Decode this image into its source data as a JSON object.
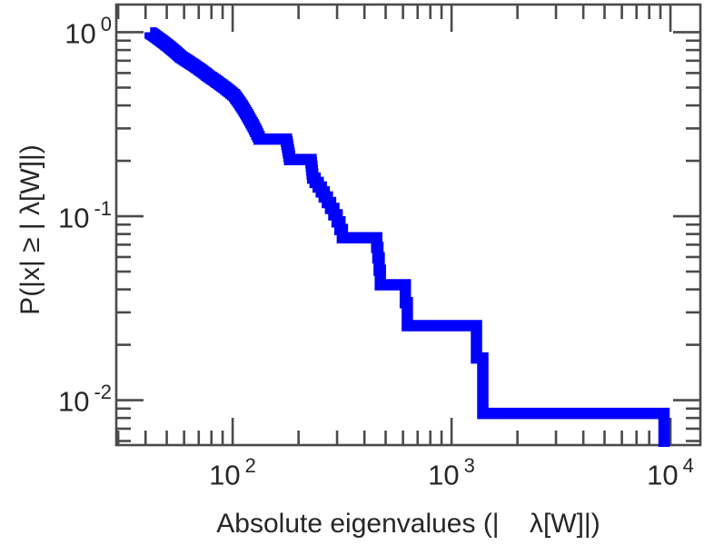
{
  "figure": {
    "background": "#ffffff",
    "frame_color": "#4a4a4a",
    "text_color": "#262626"
  },
  "chart_data": {
    "type": "line",
    "subtype": "empirical_ccdf_step",
    "title": "",
    "xlabel": "Absolute eigenvalues (|    λ[W]|)",
    "ylabel": "P(|x| ≥ | λ[W]|)",
    "x_scale": "log",
    "y_scale": "log",
    "xlim": [
      29.4,
      13700
    ],
    "ylim": [
      0.0057,
      1.414
    ],
    "grid": false,
    "legend": null,
    "x_ticks": {
      "major_values": [
        100,
        1000,
        10000
      ],
      "labels": [
        {
          "base": "10",
          "exp": "2"
        },
        {
          "base": "10",
          "exp": "3"
        },
        {
          "base": "10",
          "exp": "4"
        }
      ]
    },
    "y_ticks": {
      "major_values": [
        1,
        0.1,
        0.01
      ],
      "labels": [
        {
          "base": "10",
          "exp": "0"
        },
        {
          "base": "10",
          "exp": "-1"
        },
        {
          "base": "10",
          "exp": "-2"
        }
      ]
    },
    "series": [
      {
        "name": "absolute-eigenvalue-ccdf",
        "color": "#0000ff",
        "line_width": 12.5,
        "n_samples": 118,
        "p_start": 1.0,
        "p_min_plateau": 0.00847,
        "eigenvalues_sorted": [
          42.0,
          42.4,
          42.9,
          43.3,
          43.8,
          44.2,
          44.7,
          45.2,
          45.6,
          46.1,
          46.6,
          47.1,
          47.6,
          48.1,
          48.6,
          49.1,
          49.6,
          50.2,
          50.7,
          51.2,
          51.8,
          52.3,
          52.9,
          53.4,
          54.0,
          54.6,
          55.1,
          55.7,
          56.3,
          56.9,
          57.5,
          58.1,
          59.0,
          60.0,
          60.9,
          61.9,
          62.9,
          63.9,
          64.9,
          66.0,
          67.0,
          68.1,
          69.2,
          70.3,
          71.4,
          72.6,
          73.7,
          74.9,
          76.1,
          77.3,
          78.6,
          80.1,
          81.6,
          83.1,
          84.6,
          86.2,
          87.8,
          89.5,
          91.2,
          92.9,
          94.6,
          96.4,
          98.2,
          100.0,
          101.9,
          103.1,
          104.3,
          105.5,
          106.7,
          108.0,
          109.2,
          110.5,
          111.8,
          113.1,
          114.4,
          115.7,
          117.1,
          118.4,
          119.8,
          121.3,
          122.8,
          124.3,
          125.8,
          127.3,
          128.9,
          130.4,
          132.0,
          176.0,
          177.0,
          178.0,
          179.0,
          180.0,
          181.0,
          182.0,
          228.0,
          229.0,
          230.0,
          231.0,
          232.0,
          238.0,
          246.0,
          254.0,
          262.0,
          271.0,
          280.0,
          290.0,
          300.0,
          309.0,
          317.0,
          455.0,
          461.0,
          467.0,
          473.0,
          615.0,
          628.0,
          1300.0,
          1390.0,
          9350.0
        ]
      }
    ]
  }
}
